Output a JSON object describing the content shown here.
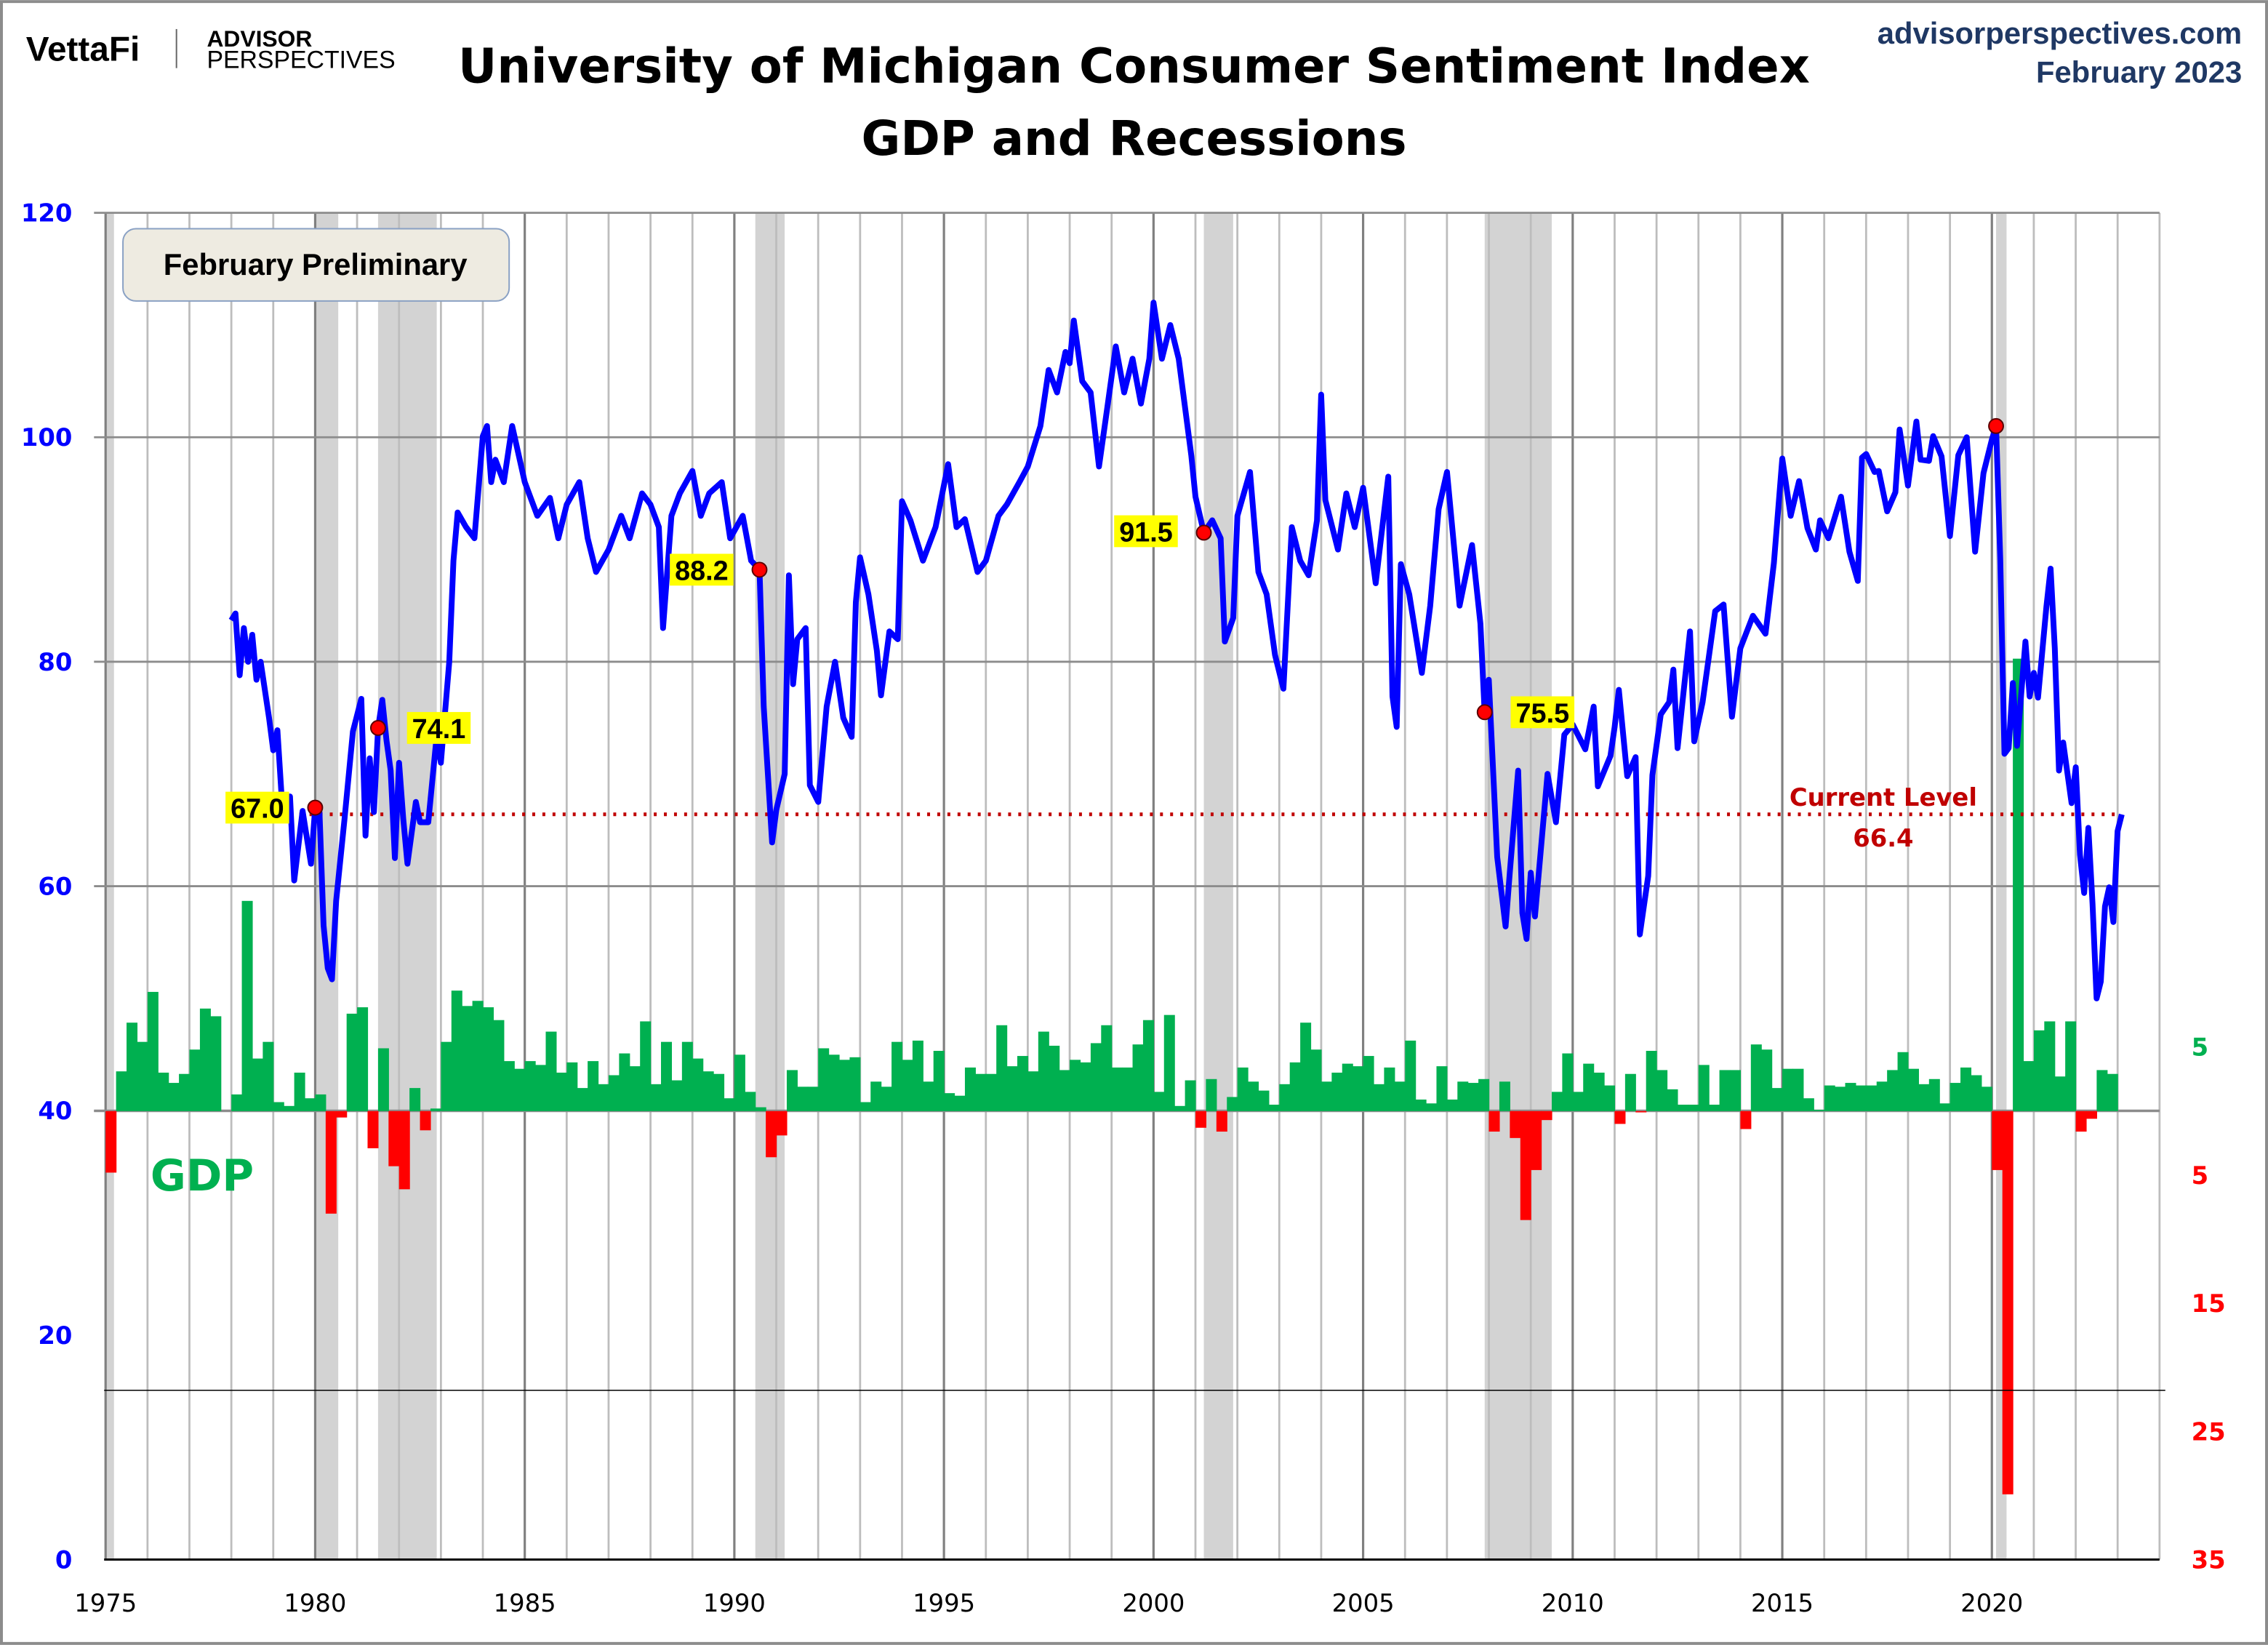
{
  "header": {
    "logo_vettafi": "VettaFi",
    "logo_advisor": "ADVISOR",
    "logo_perspectives": "PERSPECTIVES",
    "title_line1": "University of Michigan Consumer Sentiment Index",
    "title_line2": "GDP and Recessions",
    "source": "advisorperspectives.com",
    "date": "February 2023"
  },
  "badge": "February Preliminary",
  "gdp_label": "GDP",
  "current_level": {
    "label": "Current Level",
    "value": "66.4",
    "level": 66.4
  },
  "colors": {
    "sentiment": "#0000ff",
    "gdp_positive": "#00b050",
    "gdp_negative": "#ff0000",
    "recession": "#d3d3d3",
    "current_level": "#c00000",
    "annotation_bg": "#ffff00"
  },
  "chart_data": {
    "type": "line+bar",
    "title": "University of Michigan Consumer Sentiment Index / GDP and Recessions",
    "xlim": [
      1975,
      2024
    ],
    "x_ticks": [
      "1975",
      "1980",
      "1985",
      "1990",
      "1995",
      "2000",
      "2005",
      "2010",
      "2015",
      "2020"
    ],
    "y_left": {
      "lim": [
        0,
        120
      ],
      "ticks": [
        "0",
        "20",
        "40",
        "60",
        "80",
        "100",
        "120"
      ]
    },
    "y_right": {
      "zero_at_left": 40,
      "ticks_positive": [
        "5"
      ],
      "ticks_negative": [
        "5",
        "15",
        "25",
        "35"
      ]
    },
    "grid": true,
    "sentiment": {
      "x": [
        1978.0,
        1978.1,
        1978.2,
        1978.3,
        1978.4,
        1978.5,
        1978.6,
        1978.7,
        1978.9,
        1979.0,
        1979.1,
        1979.2,
        1979.4,
        1979.5,
        1979.7,
        1979.9,
        1980.0,
        1980.1,
        1980.2,
        1980.3,
        1980.4,
        1980.5,
        1980.7,
        1980.9,
        1981.1,
        1981.2,
        1981.3,
        1981.4,
        1981.5,
        1981.6,
        1981.7,
        1981.8,
        1981.9,
        1982.0,
        1982.1,
        1982.2,
        1982.4,
        1982.5,
        1982.7,
        1982.9,
        1983.0,
        1983.2,
        1983.3,
        1983.4,
        1983.6,
        1983.8,
        1984.0,
        1984.1,
        1984.2,
        1984.3,
        1984.5,
        1984.7,
        1985.0,
        1985.3,
        1985.6,
        1985.8,
        1986.0,
        1986.3,
        1986.5,
        1986.7,
        1987.0,
        1987.3,
        1987.5,
        1987.8,
        1988.0,
        1988.2,
        1988.3,
        1988.5,
        1988.7,
        1989.0,
        1989.2,
        1989.4,
        1989.7,
        1989.9,
        1990.2,
        1990.4,
        1990.6,
        1990.7,
        1990.9,
        1991.0,
        1991.2,
        1991.3,
        1991.4,
        1991.5,
        1991.7,
        1991.8,
        1992.0,
        1992.2,
        1992.4,
        1992.6,
        1992.8,
        1992.9,
        1993.0,
        1993.2,
        1993.4,
        1993.5,
        1993.7,
        1993.9,
        1994.0,
        1994.2,
        1994.5,
        1994.8,
        1995.1,
        1995.3,
        1995.5,
        1995.8,
        1996.0,
        1996.3,
        1996.5,
        1996.8,
        1997.0,
        1997.3,
        1997.5,
        1997.7,
        1997.9,
        1998.0,
        1998.1,
        1998.3,
        1998.5,
        1998.7,
        1998.9,
        1999.1,
        1999.3,
        1999.5,
        1999.7,
        1999.9,
        2000.0,
        2000.2,
        2000.4,
        2000.6,
        2000.9,
        2001.0,
        2001.2,
        2001.4,
        2001.6,
        2001.7,
        2001.9,
        2002.0,
        2002.3,
        2002.5,
        2002.7,
        2002.9,
        2003.1,
        2003.3,
        2003.5,
        2003.7,
        2003.9,
        2004.0,
        2004.1,
        2004.4,
        2004.6,
        2004.8,
        2005.0,
        2005.3,
        2005.6,
        2005.7,
        2005.8,
        2005.9,
        2006.1,
        2006.4,
        2006.6,
        2006.8,
        2007.0,
        2007.3,
        2007.6,
        2007.8,
        2007.9,
        2008.0,
        2008.2,
        2008.4,
        2008.5,
        2008.7,
        2008.8,
        2008.9,
        2009.0,
        2009.1,
        2009.4,
        2009.6,
        2009.8,
        2010.0,
        2010.3,
        2010.5,
        2010.6,
        2010.9,
        2011.0,
        2011.1,
        2011.3,
        2011.5,
        2011.6,
        2011.8,
        2011.9,
        2012.1,
        2012.3,
        2012.4,
        2012.5,
        2012.8,
        2012.9,
        2013.1,
        2013.4,
        2013.6,
        2013.8,
        2014.0,
        2014.3,
        2014.6,
        2014.8,
        2015.0,
        2015.2,
        2015.4,
        2015.6,
        2015.8,
        2015.9,
        2016.1,
        2016.4,
        2016.6,
        2016.8,
        2016.9,
        2017.0,
        2017.2,
        2017.3,
        2017.5,
        2017.7,
        2017.8,
        2018.0,
        2018.2,
        2018.3,
        2018.5,
        2018.6,
        2018.8,
        2019.0,
        2019.2,
        2019.4,
        2019.6,
        2019.8,
        2020.0,
        2020.1,
        2020.2,
        2020.3,
        2020.4,
        2020.5,
        2020.6,
        2020.8,
        2020.9,
        2021.0,
        2021.1,
        2021.3,
        2021.4,
        2021.5,
        2021.6,
        2021.7,
        2021.9,
        2022.0,
        2022.1,
        2022.2,
        2022.3,
        2022.4,
        2022.5,
        2022.6,
        2022.7,
        2022.8,
        2022.9,
        2023.0,
        2023.1
      ],
      "values": [
        83.7,
        84.3,
        78.8,
        83,
        80,
        82.4,
        78.4,
        80,
        75,
        72.1,
        73.9,
        68,
        68,
        60.5,
        66.7,
        62,
        67.0,
        66.9,
        56.5,
        52.7,
        51.7,
        58.7,
        66,
        73.8,
        76.7,
        64.5,
        71.4,
        66.6,
        74.1,
        76.6,
        73,
        70.3,
        62.5,
        71,
        66,
        62,
        67.5,
        65.7,
        65.7,
        73.4,
        71,
        80,
        89,
        93.3,
        92,
        91,
        100.1,
        101,
        96,
        98,
        96,
        101,
        96,
        93,
        94.6,
        91,
        94,
        96,
        91,
        88,
        90,
        93,
        91,
        95,
        94,
        92,
        83,
        93,
        95,
        97,
        93,
        95,
        96,
        91,
        93,
        89,
        88.2,
        76,
        63.9,
        66.8,
        70,
        87.7,
        78,
        82,
        83,
        69,
        67.5,
        76,
        80,
        75,
        73.3,
        85.3,
        89.3,
        86,
        81,
        77,
        82.7,
        82,
        94.3,
        92.6,
        89,
        92,
        97.6,
        92,
        92.7,
        88,
        89,
        93,
        94,
        96,
        97.4,
        101,
        106,
        104,
        107.6,
        106.6,
        110.4,
        105,
        104,
        97.4,
        102.7,
        108.1,
        104,
        107,
        103,
        107,
        112,
        107,
        110,
        107,
        98.4,
        94.7,
        91.5,
        92.6,
        91,
        81.8,
        83.9,
        93,
        96.9,
        88,
        86,
        80.6,
        77.6,
        92,
        89,
        87.7,
        92.6,
        103.8,
        94.4,
        90,
        95,
        92,
        95.5,
        87,
        96.5,
        76.9,
        74.2,
        88.7,
        86,
        79,
        85,
        93.6,
        96.9,
        85,
        90.4,
        83.4,
        75.5,
        78.4,
        62.6,
        56.4,
        61.2,
        70.3,
        57.6,
        55.3,
        61.2,
        57.3,
        70,
        65.7,
        73.5,
        74.4,
        72.2,
        76,
        68.9,
        71.6,
        74.2,
        77.5,
        69.8,
        71.5,
        55.7,
        60.9,
        69.9,
        75.3,
        76.4,
        79.3,
        72.3,
        82.7,
        72.9,
        76.4,
        84.5,
        85.1,
        75.1,
        81.2,
        84.1,
        82.5,
        88.8,
        98.1,
        93,
        96.1,
        91.9,
        90,
        92.6,
        91,
        94.7,
        89.8,
        87.2,
        98.2,
        98.5,
        96.9,
        97.0,
        93.4,
        95.1,
        100.7,
        95.7,
        101.4,
        98.0,
        97.9,
        100.1,
        98.3,
        91.2,
        98.4,
        100,
        89.8,
        96.8,
        99.8,
        101.0,
        89.1,
        71.8,
        72.3,
        78.1,
        72.5,
        81.8,
        76.9,
        79,
        76.8,
        84.9,
        88.3,
        81.2,
        70.3,
        72.8,
        67.4,
        70.6,
        62.8,
        59.4,
        65.2,
        58.4,
        50.0,
        51.5,
        58.2,
        59.9,
        56.8,
        64.9,
        66.4
      ]
    },
    "annotations": [
      {
        "x": 1980.0,
        "value": 67.0,
        "label": "67.0"
      },
      {
        "x": 1981.5,
        "value": 74.1,
        "label": "74.1"
      },
      {
        "x": 1990.6,
        "value": 88.2,
        "label": "88.2"
      },
      {
        "x": 2001.2,
        "value": 91.5,
        "label": "91.5"
      },
      {
        "x": 2007.9,
        "value": 75.5,
        "label": "75.5"
      },
      {
        "x": 2020.1,
        "value": 101.0,
        "label": ""
      }
    ],
    "gdp": {
      "start": "1975 Q1",
      "frequency": "quarterly",
      "values": [
        -4.8,
        3.1,
        6.9,
        5.4,
        9.3,
        3.0,
        2.2,
        2.9,
        4.8,
        8.0,
        7.4,
        0.0,
        1.3,
        16.4,
        4.1,
        5.4,
        0.7,
        0.4,
        3.0,
        1.0,
        1.3,
        -8.0,
        -0.5,
        7.6,
        8.1,
        -2.9,
        4.9,
        -4.3,
        -6.1,
        1.8,
        -1.5,
        0.2,
        5.4,
        9.4,
        8.2,
        8.6,
        8.1,
        7.1,
        3.9,
        3.3,
        3.9,
        3.6,
        6.2,
        3.0,
        3.8,
        1.8,
        3.9,
        2.1,
        2.8,
        4.5,
        3.5,
        7.0,
        2.1,
        5.4,
        2.4,
        5.4,
        4.1,
        3.1,
        2.9,
        1.0,
        4.4,
        1.5,
        0.3,
        -3.6,
        -1.9,
        3.2,
        1.9,
        1.9,
        4.9,
        4.4,
        4.0,
        4.2,
        0.7,
        2.3,
        1.9,
        5.4,
        4.0,
        5.5,
        2.3,
        4.7,
        1.4,
        1.2,
        3.4,
        2.9,
        2.9,
        6.7,
        3.5,
        4.3,
        3.1,
        6.2,
        5.1,
        3.2,
        4.0,
        3.8,
        5.3,
        6.7,
        3.4,
        3.4,
        5.2,
        7.1,
        1.5,
        7.5,
        0.4,
        2.4,
        -1.3,
        2.5,
        -1.6,
        1.1,
        3.4,
        2.3,
        1.6,
        0.5,
        2.1,
        3.8,
        6.9,
        4.8,
        2.3,
        3.0,
        3.7,
        3.5,
        4.3,
        2.1,
        3.4,
        2.3,
        5.5,
        0.9,
        0.6,
        3.5,
        0.9,
        2.3,
        2.2,
        2.5,
        -1.6,
        2.3,
        -2.1,
        -8.5,
        -4.6,
        -0.7,
        1.5,
        4.5,
        1.5,
        3.7,
        3.0,
        2.0,
        -1.0,
        2.9,
        -0.1,
        4.7,
        3.2,
        1.7,
        0.5,
        0.5,
        3.6,
        0.5,
        3.2,
        3.2,
        -1.4,
        5.2,
        4.8,
        1.8,
        3.3,
        3.3,
        1.0,
        0.1,
        2.0,
        1.9,
        2.2,
        2.0,
        2.0,
        2.3,
        3.2,
        4.6,
        3.3,
        2.1,
        2.5,
        0.6,
        2.2,
        3.4,
        2.8,
        1.9,
        -4.6,
        -29.9,
        35.3,
        3.9,
        6.3,
        7.0,
        2.7,
        7.0,
        -1.6,
        -0.6,
        3.2,
        2.9
      ]
    },
    "recessions": [
      [
        1973.9,
        1975.2
      ],
      [
        1980.0,
        1980.55
      ],
      [
        1981.5,
        1982.9
      ],
      [
        1990.5,
        1991.2
      ],
      [
        2001.2,
        2001.9
      ],
      [
        2007.9,
        2009.5
      ],
      [
        2020.1,
        2020.35
      ]
    ]
  }
}
